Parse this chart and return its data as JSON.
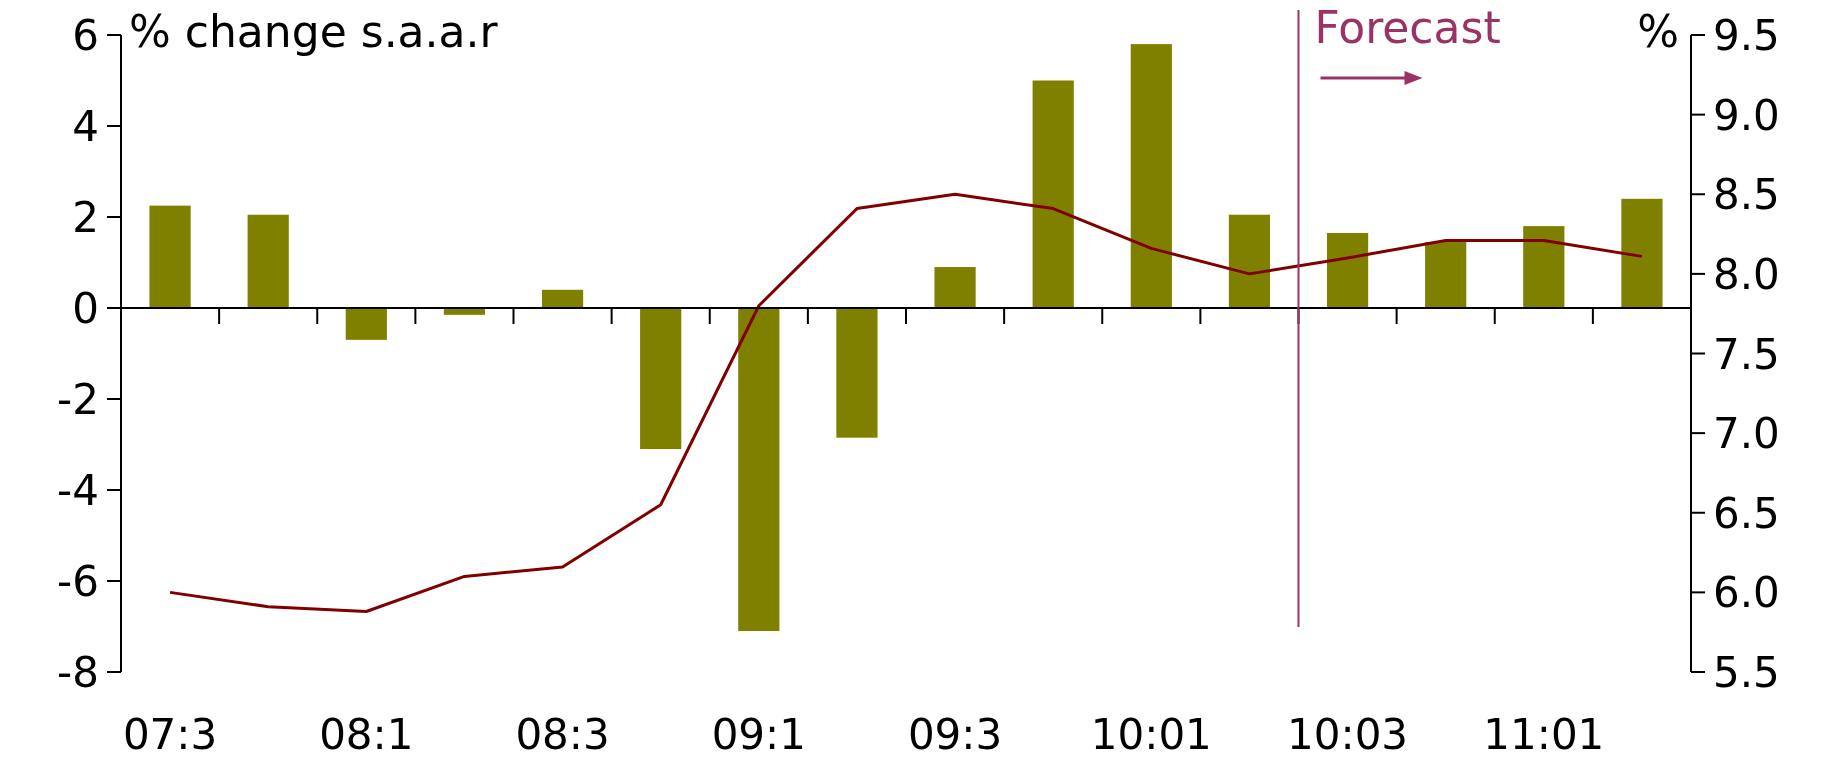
{
  "chart_data": {
    "type": "bar",
    "ylabel": "% change s.a.a.r",
    "y2label": "%",
    "categories": [
      "07:3",
      null,
      "08:1",
      null,
      "08:3",
      null,
      "09:1",
      null,
      "09:3",
      null,
      "10:01",
      null,
      "10:03",
      null,
      "11:01",
      null
    ],
    "series": [
      {
        "color": "#808000",
        "values": [
          2.25,
          2.05,
          -0.7,
          -0.15,
          0.4,
          -3.1,
          -7.1,
          -2.85,
          0.9,
          5.0,
          5.8,
          2.05,
          1.65,
          1.45,
          1.8,
          2.4
        ]
      },
      {
        "type": "line",
        "axis": "y2",
        "color": "#800000",
        "values": [
          6.0,
          5.91,
          5.88,
          6.1,
          6.16,
          6.55,
          7.8,
          8.41,
          8.5,
          8.41,
          8.16,
          8.0,
          8.1,
          8.21,
          8.21,
          8.11
        ]
      }
    ],
    "ylim": [
      -8,
      6
    ],
    "yticks": [
      -8,
      -6,
      -4,
      -2,
      0,
      2,
      4,
      6
    ],
    "y2lim": [
      5.5,
      9.5
    ],
    "y2ticks": [
      {
        "value": 5.5,
        "label": "5.5"
      },
      {
        "value": 6,
        "label": "6.0"
      },
      {
        "value": 6.5,
        "label": "6.5"
      },
      {
        "value": 7,
        "label": "7.0"
      },
      {
        "value": 7.5,
        "label": "7.5"
      },
      {
        "value": 8,
        "label": "8.0"
      },
      {
        "value": 8.5,
        "label": "8.5"
      },
      {
        "value": 9,
        "label": "9.0"
      },
      {
        "value": 9.5,
        "label": "9.5"
      }
    ],
    "annotations": [
      "Forecast"
    ],
    "grid": false,
    "marker": "none",
    "line_style": "solid"
  }
}
